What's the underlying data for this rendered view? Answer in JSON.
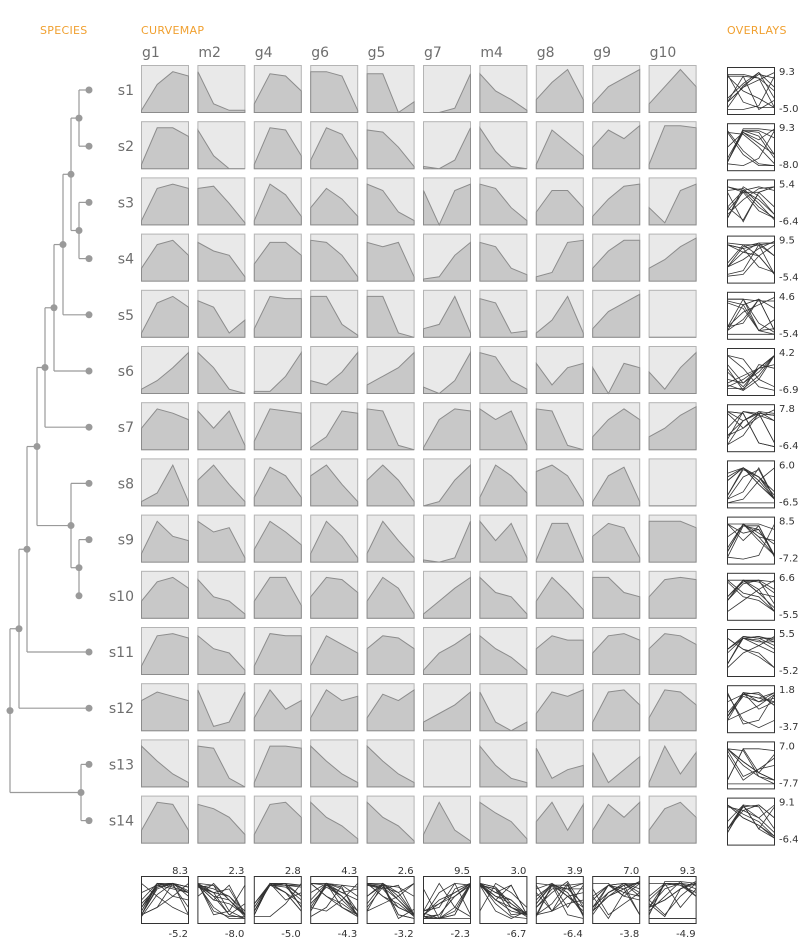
{
  "headers": {
    "species": "SPECIES",
    "curvemap": "CURVEMAP",
    "overlays": "OVERLAYS"
  },
  "colors": {
    "accent": "#f0a030",
    "fill": "#c8c8c8",
    "stroke": "#8c8c8c",
    "cellBg": "#e9e9e9",
    "tree": "#9a9a9a"
  },
  "chart_data": {
    "type": "area",
    "genes": [
      "g1",
      "m2",
      "g4",
      "g6",
      "g5",
      "g7",
      "m4",
      "g8",
      "g9",
      "g10"
    ],
    "species": [
      "s1",
      "s2",
      "s3",
      "s4",
      "s5",
      "s6",
      "s7",
      "s8",
      "s9",
      "s10",
      "s11",
      "s12",
      "s13",
      "s14"
    ],
    "rowRanges": [
      [
        "9.3",
        "-5.0"
      ],
      [
        "9.3",
        "-8.0"
      ],
      [
        "5.4",
        "-6.4"
      ],
      [
        "9.5",
        "-5.4"
      ],
      [
        "4.6",
        "-5.4"
      ],
      [
        "4.2",
        "-6.9"
      ],
      [
        "7.8",
        "-6.4"
      ],
      [
        "6.0",
        "-6.5"
      ],
      [
        "8.5",
        "-7.2"
      ],
      [
        "6.6",
        "-5.5"
      ],
      [
        "5.5",
        "-5.2"
      ],
      [
        "1.8",
        "-3.7"
      ],
      [
        "7.0",
        "-7.7"
      ],
      [
        "9.1",
        "-6.4"
      ]
    ],
    "colRanges": [
      [
        "8.3",
        "-5.2"
      ],
      [
        "2.3",
        "-8.0"
      ],
      [
        "2.8",
        "-5.0"
      ],
      [
        "4.3",
        "-4.3"
      ],
      [
        "2.6",
        "-3.2"
      ],
      [
        "9.5",
        "-2.3"
      ],
      [
        "3.0",
        "-6.7"
      ],
      [
        "3.9",
        "-6.4"
      ],
      [
        "7.0",
        "-3.8"
      ],
      [
        "9.3",
        "-4.9"
      ]
    ],
    "curves": [
      [
        [
          0.05,
          0.65,
          0.95,
          0.85
        ],
        [
          0.95,
          0.2,
          0.05,
          0.05
        ],
        [
          0.2,
          0.9,
          0.85,
          0.5
        ],
        [
          0.95,
          0.95,
          0.85,
          0.05
        ],
        [
          0.9,
          0.9,
          0.0,
          0.25
        ],
        [
          0,
          0,
          0.1,
          0.9
        ],
        [
          0.9,
          0.5,
          0.3,
          0.05
        ],
        [
          0.3,
          0.7,
          1.0,
          0.3
        ],
        [
          0.2,
          0.6,
          0.8,
          1.0
        ],
        [
          0.2,
          0.6,
          1.0,
          0.6
        ]
      ],
      [
        [
          0.1,
          0.95,
          0.95,
          0.75
        ],
        [
          0.9,
          0.3,
          0,
          0
        ],
        [
          0.1,
          0.95,
          0.9,
          0.3
        ],
        [
          0.2,
          0.95,
          0.8,
          0.2
        ],
        [
          0.9,
          0.85,
          0.5,
          0.05
        ],
        [
          0.05,
          0,
          0.2,
          0.95
        ],
        [
          0.95,
          0.4,
          0.05,
          0
        ],
        [
          0.1,
          0.9,
          0.6,
          0.3
        ],
        [
          0.5,
          0.9,
          0.7,
          1.0
        ],
        [
          0.1,
          1.0,
          1.0,
          0.95
        ]
      ],
      [
        [
          0.1,
          0.85,
          0.95,
          0.85
        ],
        [
          0.85,
          0.9,
          0.5,
          0.05
        ],
        [
          0.1,
          0.95,
          0.7,
          0.2
        ],
        [
          0.4,
          0.85,
          0.6,
          0.2
        ],
        [
          0.95,
          0.8,
          0.3,
          0.1
        ],
        [
          0.8,
          0,
          0.8,
          0.95
        ],
        [
          0.95,
          0.85,
          0.4,
          0.1
        ],
        [
          0.3,
          0.8,
          0.8,
          0.4
        ],
        [
          0.2,
          0.6,
          0.9,
          0.95
        ],
        [
          0.4,
          0.05,
          0.8,
          0.95
        ]
      ],
      [
        [
          0.3,
          0.85,
          0.95,
          0.6
        ],
        [
          0.9,
          0.7,
          0.6,
          0.1
        ],
        [
          0.4,
          0.9,
          0.9,
          0.6
        ],
        [
          0.95,
          0.9,
          0.6,
          0.1
        ],
        [
          0.9,
          0.8,
          0.9,
          0.1
        ],
        [
          0.05,
          0.1,
          0.6,
          0.9
        ],
        [
          0.9,
          0.8,
          0.3,
          0.15
        ],
        [
          0.1,
          0.2,
          0.9,
          0.95
        ],
        [
          0.3,
          0.7,
          0.95,
          0.95
        ],
        [
          0.3,
          0.5,
          0.8,
          1.0
        ]
      ],
      [
        [
          0.1,
          0.8,
          0.95,
          0.7
        ],
        [
          0.85,
          0.7,
          0.1,
          0.4
        ],
        [
          0.2,
          0.95,
          0.9,
          0.9
        ],
        [
          0.95,
          0.95,
          0.3,
          0.05
        ],
        [
          0.95,
          0.95,
          0.1,
          0
        ],
        [
          0.2,
          0.3,
          0.95,
          0.1
        ],
        [
          0.9,
          0.8,
          0.1,
          0.15
        ],
        [
          0.1,
          0.4,
          0.95,
          0.1
        ],
        [
          0.2,
          0.6,
          0.8,
          1.0
        ],
        [
          0,
          0,
          0,
          0
        ]
      ],
      [
        [
          0.1,
          0.3,
          0.6,
          0.95
        ],
        [
          0.95,
          0.6,
          0.1,
          0
        ],
        [
          0.05,
          0.05,
          0.4,
          0.95
        ],
        [
          0.3,
          0.2,
          0.5,
          0.95
        ],
        [
          0.2,
          0.4,
          0.6,
          0.95
        ],
        [
          0.15,
          0,
          0.3,
          0.95
        ],
        [
          0.95,
          0.85,
          0.3,
          0.1
        ],
        [
          0.7,
          0.2,
          0.6,
          0.7
        ],
        [
          0.6,
          0,
          0.7,
          0.6
        ],
        [
          0.5,
          0.1,
          0.6,
          0.95
        ]
      ],
      [
        [
          0.5,
          0.95,
          0.85,
          0.7
        ],
        [
          0.9,
          0.5,
          0.9,
          0.1
        ],
        [
          0.2,
          0.95,
          0.9,
          0.85
        ],
        [
          0.05,
          0.3,
          0.9,
          0.85
        ],
        [
          0.95,
          0.9,
          0.1,
          0
        ],
        [
          0.05,
          0.7,
          0.95,
          0.9
        ],
        [
          0.95,
          0.7,
          0.9,
          0.1
        ],
        [
          0.95,
          0.9,
          0.1,
          0
        ],
        [
          0.3,
          0.7,
          0.95,
          0.7
        ],
        [
          0.3,
          0.5,
          0.8,
          1.0
        ]
      ],
      [
        [
          0.1,
          0.3,
          0.95,
          0.1
        ],
        [
          0.6,
          0.95,
          0.5,
          0.1
        ],
        [
          0.2,
          0.9,
          0.7,
          0.2
        ],
        [
          0.7,
          0.95,
          0.5,
          0.1
        ],
        [
          0.6,
          0.95,
          0.6,
          0.1
        ],
        [
          0,
          0.1,
          0.6,
          0.95
        ],
        [
          0.2,
          0.95,
          0.7,
          0.3
        ],
        [
          0.8,
          0.95,
          0.7,
          0.1
        ],
        [
          0.1,
          0.7,
          0.9,
          0.1
        ],
        [
          0,
          0,
          0,
          0
        ]
      ],
      [
        [
          0.2,
          0.95,
          0.6,
          0.5
        ],
        [
          0.95,
          0.7,
          0.8,
          0.1
        ],
        [
          0.3,
          0.95,
          0.7,
          0.4
        ],
        [
          0.2,
          0.95,
          0.6,
          0.1
        ],
        [
          0.2,
          0.95,
          0.5,
          0.1
        ],
        [
          0.05,
          0,
          0.1,
          0.95
        ],
        [
          0.95,
          0.5,
          0.9,
          0.1
        ],
        [
          0.05,
          0.9,
          0.9,
          0.05
        ],
        [
          0.6,
          0.9,
          0.8,
          0.1
        ],
        [
          0.95,
          0.95,
          0.95,
          0.8
        ]
      ],
      [
        [
          0.4,
          0.85,
          0.95,
          0.7
        ],
        [
          0.9,
          0.5,
          0.4,
          0.1
        ],
        [
          0.4,
          0.95,
          0.95,
          0.3
        ],
        [
          0.5,
          0.95,
          0.9,
          0.6
        ],
        [
          0.4,
          0.95,
          0.7,
          0.1
        ],
        [
          0.1,
          0.4,
          0.7,
          0.95
        ],
        [
          0.95,
          0.6,
          0.5,
          0.1
        ],
        [
          0.4,
          0.95,
          0.6,
          0.2
        ],
        [
          0.95,
          0.95,
          0.6,
          0.5
        ],
        [
          0.5,
          0.9,
          0.95,
          0.9
        ]
      ],
      [
        [
          0.2,
          0.9,
          0.95,
          0.85
        ],
        [
          0.9,
          0.6,
          0.5,
          0.1
        ],
        [
          0.2,
          0.95,
          0.9,
          0.9
        ],
        [
          0.2,
          0.9,
          0.7,
          0.5
        ],
        [
          0.6,
          0.9,
          0.85,
          0.6
        ],
        [
          0.1,
          0.5,
          0.7,
          0.95
        ],
        [
          0.9,
          0.6,
          0.4,
          0.1
        ],
        [
          0.6,
          0.9,
          0.8,
          0.8
        ],
        [
          0.5,
          0.9,
          0.95,
          0.8
        ],
        [
          0.6,
          0.95,
          0.9,
          0.7
        ]
      ],
      [
        [
          0.7,
          0.9,
          0.8,
          0.7
        ],
        [
          0.95,
          0.1,
          0.2,
          0.9
        ],
        [
          0.3,
          0.95,
          0.5,
          0.7
        ],
        [
          0.3,
          0.95,
          0.7,
          0.8
        ],
        [
          0.3,
          0.85,
          0.7,
          0.95
        ],
        [
          0.2,
          0.4,
          0.6,
          0.9
        ],
        [
          0.9,
          0.2,
          0,
          0.2
        ],
        [
          0.4,
          0.9,
          0.8,
          0.95
        ],
        [
          0.2,
          0.9,
          0.95,
          0.6
        ],
        [
          0.3,
          0.95,
          0.9,
          0.6
        ]
      ],
      [
        [
          0.95,
          0.6,
          0.3,
          0.1
        ],
        [
          0.95,
          0.9,
          0.2,
          0
        ],
        [
          0.1,
          0.95,
          0.95,
          0.9
        ],
        [
          0.95,
          0.6,
          0.3,
          0.1
        ],
        [
          0.95,
          0.6,
          0.3,
          0.1
        ],
        [
          0,
          0,
          0,
          0
        ],
        [
          0.95,
          0.5,
          0.2,
          0.1
        ],
        [
          0.9,
          0.2,
          0.4,
          0.5
        ],
        [
          0.8,
          0.1,
          0.4,
          0.7
        ],
        [
          0.1,
          0.95,
          0.3,
          0.8
        ]
      ],
      [
        [
          0.3,
          0.95,
          0.9,
          0.3
        ],
        [
          0.9,
          0.8,
          0.6,
          0.2
        ],
        [
          0.2,
          0.9,
          0.95,
          0.6
        ],
        [
          0.95,
          0.6,
          0.4,
          0.1
        ],
        [
          0.95,
          0.6,
          0.4,
          0.05
        ],
        [
          0.2,
          0.95,
          0.3,
          0.05
        ],
        [
          0.95,
          0.7,
          0.5,
          0.1
        ],
        [
          0.5,
          0.95,
          0.3,
          0.9
        ],
        [
          0.3,
          0.9,
          0.6,
          0.95
        ],
        [
          0.3,
          0.8,
          0.95,
          0.6
        ]
      ]
    ]
  }
}
